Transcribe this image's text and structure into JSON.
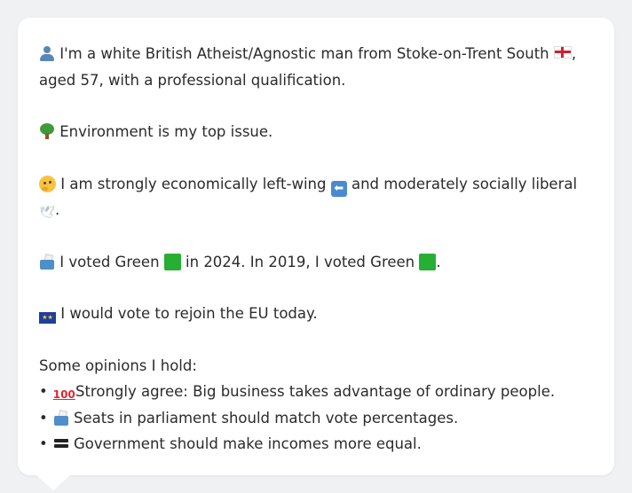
{
  "profile": {
    "line1": "I'm a white British Atheist/Agnostic man from Stoke-on-Trent South ",
    "line1_end": ",",
    "line2": "aged 57, with a professional qualification."
  },
  "issue": {
    "text": "Environment is my top issue."
  },
  "ideology": {
    "text_a": "I am strongly economically left-wing ",
    "text_b": " and moderately socially liberal",
    "text_c": "."
  },
  "votes": {
    "text_a": "I voted Green ",
    "text_b": " in 2024. In 2019, I voted Green ",
    "text_c": "."
  },
  "eu": {
    "text": "I would vote to rejoin the EU today."
  },
  "opinions": {
    "heading": "Some opinions I hold:",
    "bullet": "•",
    "items": [
      {
        "icon": "hundred-icon",
        "text": "Strongly agree: Big business takes advantage of ordinary people."
      },
      {
        "icon": "ballot-box-icon",
        "text": "Seats in parliament should match vote percentages."
      },
      {
        "icon": "equals-icon",
        "text": "Government should make incomes more equal."
      }
    ]
  },
  "icons": {
    "person": "person-icon",
    "england_flag": "england-flag-icon",
    "tree": "tree-icon",
    "thinking": "thinking-face-icon",
    "left_arrow": "left-arrow-icon",
    "dove": "dove-icon",
    "ballot": "ballot-box-icon",
    "green_square": "green-square-icon",
    "eu_flag": "eu-flag-icon"
  },
  "colors": {
    "green_party": "#27ae34",
    "text": "#2b2b2b",
    "card": "#ffffff",
    "background": "#f0f1f3"
  }
}
